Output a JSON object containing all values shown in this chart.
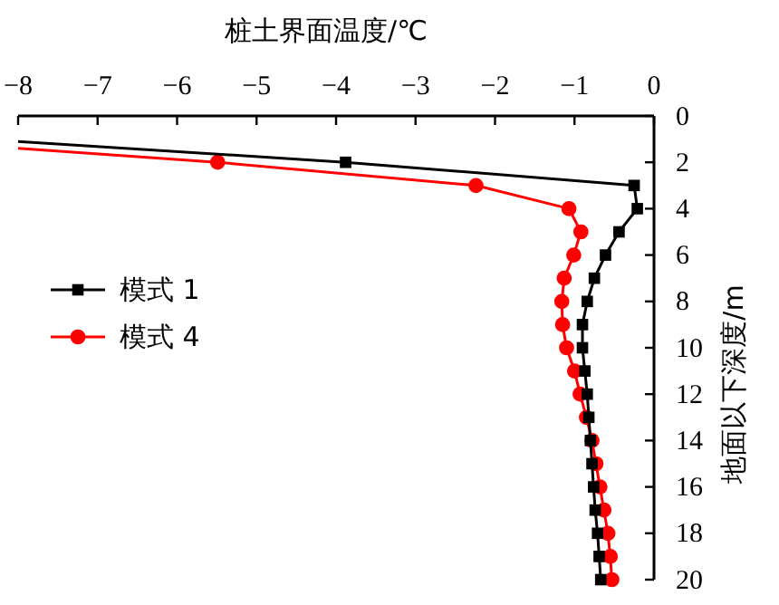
{
  "chart_data": {
    "type": "line",
    "xlabel": "桩土界面温度/℃",
    "ylabel": "地面以下深度/m",
    "xlim": [
      -8,
      0
    ],
    "xticks": [
      -8,
      -7,
      -6,
      -5,
      -4,
      -3,
      -2,
      -1,
      0
    ],
    "ylim": [
      20,
      0
    ],
    "yticks": [
      0,
      2,
      4,
      6,
      8,
      10,
      12,
      14,
      16,
      18,
      20
    ],
    "grid": false,
    "legend": "left",
    "line_style": "solid",
    "series": [
      {
        "name": "模式 1",
        "color": "#000000",
        "marker": "square",
        "x": [
          -8,
          -3.88,
          -0.25,
          -0.21,
          -0.44,
          -0.61,
          -0.75,
          -0.84,
          -0.9,
          -0.9,
          -0.87,
          -0.84,
          -0.82,
          -0.8,
          -0.78,
          -0.76,
          -0.74,
          -0.71,
          -0.69,
          -0.67
        ],
        "values": [
          1.1,
          2,
          3,
          4,
          5,
          6,
          7,
          8,
          9,
          10,
          11,
          12,
          13,
          14,
          15,
          16,
          17,
          18,
          19,
          20
        ]
      },
      {
        "name": "模式 4",
        "color": "#ff0000",
        "marker": "circle",
        "x": [
          -8,
          -5.49,
          -2.24,
          -1.07,
          -0.92,
          -1.01,
          -1.13,
          -1.16,
          -1.15,
          -1.1,
          -1.0,
          -0.93,
          -0.85,
          -0.78,
          -0.73,
          -0.68,
          -0.63,
          -0.58,
          -0.55,
          -0.53
        ],
        "values": [
          1.4,
          2,
          3,
          4,
          5,
          6,
          7,
          8,
          9,
          10,
          11,
          12,
          13,
          14,
          15,
          16,
          17,
          18,
          19,
          20
        ]
      }
    ]
  }
}
